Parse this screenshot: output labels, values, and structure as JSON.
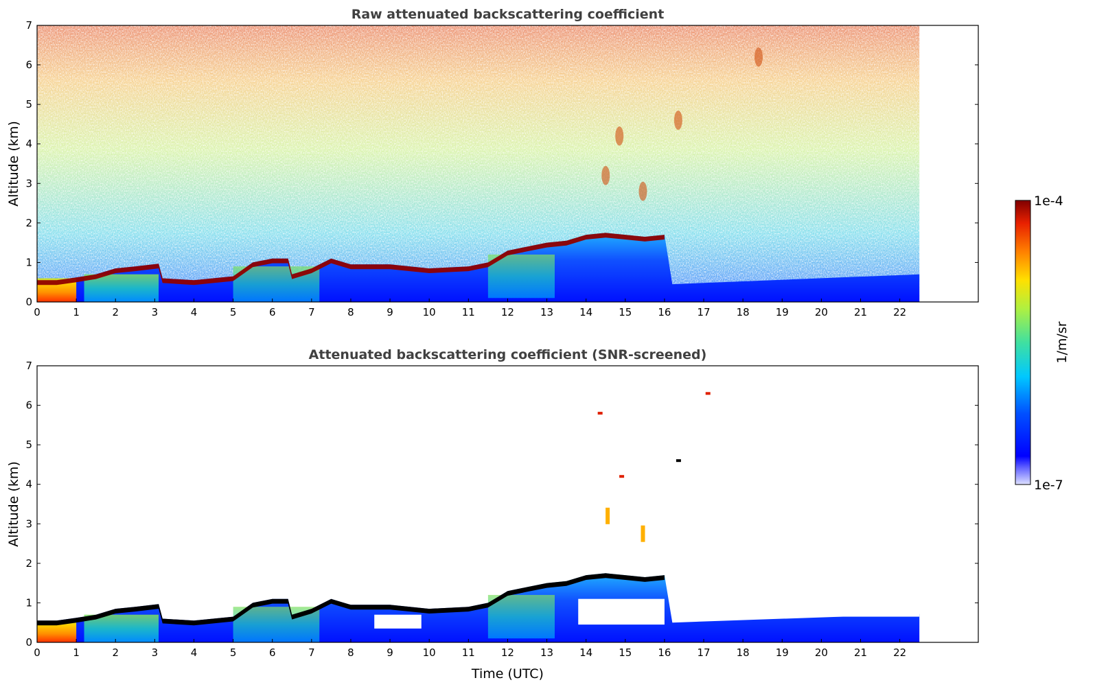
{
  "chart_data": [
    {
      "type": "heatmap",
      "title": "Raw attenuated backscattering coefficient",
      "xlabel": "",
      "ylabel": "Altitude (km)",
      "xlim": [
        0,
        24
      ],
      "ylim": [
        0,
        7
      ],
      "data_extent_x": [
        0,
        22.5
      ],
      "xticks": [
        "0",
        "1",
        "2",
        "3",
        "4",
        "5",
        "6",
        "7",
        "8",
        "9",
        "10",
        "11",
        "12",
        "13",
        "14",
        "15",
        "16",
        "17",
        "18",
        "19",
        "20",
        "21",
        "22"
      ],
      "yticks": [
        "0",
        "1",
        "2",
        "3",
        "4",
        "5",
        "6",
        "7"
      ],
      "layer_top_km": [
        {
          "t": 0,
          "z": 0.55
        },
        {
          "t": 0.5,
          "z": 0.55
        },
        {
          "t": 1,
          "z": 0.62
        },
        {
          "t": 1.5,
          "z": 0.7
        },
        {
          "t": 2,
          "z": 0.85
        },
        {
          "t": 2.5,
          "z": 0.9
        },
        {
          "t": 3.1,
          "z": 0.97
        },
        {
          "t": 3.2,
          "z": 0.6
        },
        {
          "t": 4,
          "z": 0.55
        },
        {
          "t": 5,
          "z": 0.65
        },
        {
          "t": 5.5,
          "z": 1.0
        },
        {
          "t": 6,
          "z": 1.1
        },
        {
          "t": 6.4,
          "z": 1.1
        },
        {
          "t": 6.5,
          "z": 0.7
        },
        {
          "t": 7,
          "z": 0.85
        },
        {
          "t": 7.5,
          "z": 1.1
        },
        {
          "t": 8,
          "z": 0.95
        },
        {
          "t": 9,
          "z": 0.95
        },
        {
          "t": 10,
          "z": 0.85
        },
        {
          "t": 11,
          "z": 0.9
        },
        {
          "t": 11.5,
          "z": 1.0
        },
        {
          "t": 12,
          "z": 1.3
        },
        {
          "t": 12.5,
          "z": 1.4
        },
        {
          "t": 13,
          "z": 1.5
        },
        {
          "t": 13.5,
          "z": 1.55
        },
        {
          "t": 14,
          "z": 1.7
        },
        {
          "t": 14.5,
          "z": 1.75
        },
        {
          "t": 15,
          "z": 1.7
        },
        {
          "t": 15.5,
          "z": 1.65
        },
        {
          "t": 16,
          "z": 1.7
        }
      ],
      "colorbar": {
        "min_label": "1e-7",
        "max_label": "1e-4",
        "label": "1/m/sr",
        "scale": "log"
      },
      "colors": {
        "low": "#0000ff",
        "high": "#800000",
        "missing": "#ffffff"
      }
    },
    {
      "type": "heatmap",
      "title": "Attenuated backscattering coefficient (SNR-screened)",
      "xlabel": "Time (UTC)",
      "ylabel": "Altitude (km)",
      "xlim": [
        0,
        24
      ],
      "ylim": [
        0,
        7
      ],
      "data_extent_x": [
        0,
        22.5
      ],
      "xticks": [
        "0",
        "1",
        "2",
        "3",
        "4",
        "5",
        "6",
        "7",
        "8",
        "9",
        "10",
        "11",
        "12",
        "13",
        "14",
        "15",
        "16",
        "17",
        "18",
        "19",
        "20",
        "21",
        "22"
      ],
      "yticks": [
        "0",
        "1",
        "2",
        "3",
        "4",
        "5",
        "6",
        "7"
      ],
      "features": [
        {
          "t": 14.35,
          "z": 5.8,
          "kind": "red-dot"
        },
        {
          "t": 14.9,
          "z": 4.2,
          "kind": "red-dot"
        },
        {
          "t": 14.55,
          "z": 3.2,
          "kind": "orange-streak"
        },
        {
          "t": 15.45,
          "z": 2.75,
          "kind": "orange-streak"
        },
        {
          "t": 16.35,
          "z": 4.6,
          "kind": "black-dot"
        },
        {
          "t": 17.1,
          "z": 6.3,
          "kind": "red-dot"
        }
      ]
    }
  ]
}
